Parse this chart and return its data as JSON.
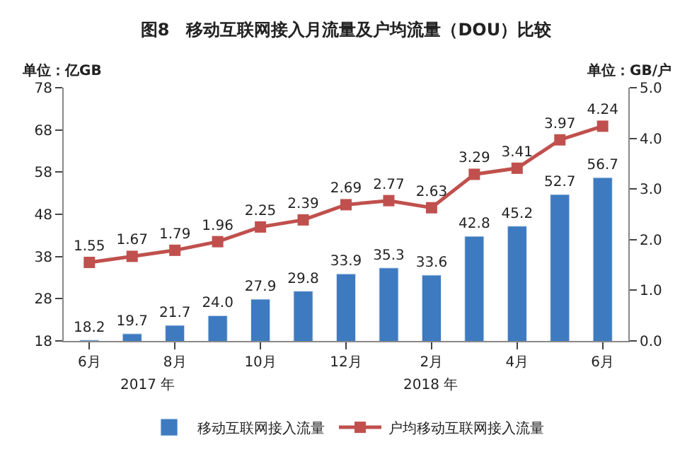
{
  "chart_data": {
    "type": "bar",
    "title": "图8　移动互联网接入月流量及户均流量（DOU）比较",
    "ylabel": "单位：亿GB",
    "y2label": "单位：GB/户",
    "categories": [
      "6月",
      null,
      "8月",
      null,
      "10月",
      null,
      "12月",
      null,
      "2月",
      null,
      "4月",
      null,
      "6月"
    ],
    "series": [
      {
        "name": "移动互联网接入流量",
        "color": "#3d7ac0",
        "values": [
          18.2,
          19.7,
          21.7,
          24.0,
          27.9,
          29.8,
          33.9,
          35.3,
          33.6,
          42.8,
          45.2,
          52.7,
          56.7
        ],
        "value_labels": [
          "18.2",
          "19.7",
          "21.7",
          "24.0",
          "27.9",
          "29.8",
          "33.9",
          "35.3",
          "33.6",
          "42.8",
          "45.2",
          "52.7",
          "56.7"
        ]
      },
      {
        "name": "户均移动互联网接入流量",
        "type": "line",
        "axis": "y2",
        "color": "#c0504d",
        "marker": "square",
        "values": [
          1.55,
          1.67,
          1.79,
          1.96,
          2.25,
          2.39,
          2.69,
          2.77,
          2.63,
          3.29,
          3.41,
          3.97,
          4.24
        ],
        "value_labels": [
          "1.55",
          "1.67",
          "1.79",
          "1.96",
          "2.25",
          "2.39",
          "2.69",
          "2.77",
          "2.63",
          "3.29",
          "3.41",
          "3.97",
          "4.24"
        ]
      }
    ],
    "ylim": [
      18,
      78
    ],
    "yticks": [
      18,
      28,
      38,
      48,
      58,
      68,
      78
    ],
    "y2lim": [
      0,
      5
    ],
    "y2ticks": [
      {
        "value": 0,
        "label": "0.0"
      },
      {
        "value": 1,
        "label": "1.0"
      },
      {
        "value": 2,
        "label": "2.0"
      },
      {
        "value": 3,
        "label": "3.0"
      },
      {
        "value": 4,
        "label": "4.0"
      },
      {
        "value": 5,
        "label": "5.0"
      }
    ],
    "annotations": [
      "2017 年",
      "2018 年"
    ],
    "legend": "bottom"
  }
}
